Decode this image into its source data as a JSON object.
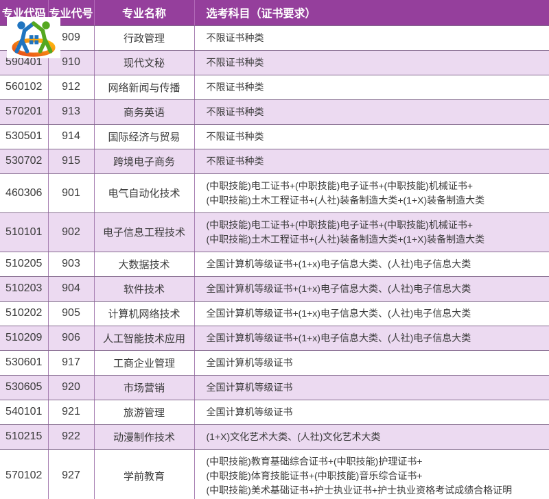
{
  "header": {
    "major_code": "专业代码",
    "major_number": "专业代号",
    "major_name": "专业名称",
    "exam_subjects": "选考科目（证书要求）"
  },
  "logo": {
    "description": "two-people-house-logo"
  },
  "colors": {
    "header_bg": "#953f9c",
    "row_alt": "#ecdaf1",
    "border_vertical": "#a77fb2",
    "border_horizontal": "#82688c",
    "text": "#3a3a3a",
    "logo_blue": "#1f74c0",
    "logo_green": "#55a820",
    "logo_orange": "#e8481a",
    "logo_yellow": "#ffc20e"
  },
  "rows": [
    {
      "code": "",
      "num": "909",
      "name": "行政管理",
      "req": "不限证书种类"
    },
    {
      "code": "590401",
      "num": "910",
      "name": "现代文秘",
      "req": "不限证书种类"
    },
    {
      "code": "560102",
      "num": "912",
      "name": "网络新闻与传播",
      "req": "不限证书种类"
    },
    {
      "code": "570201",
      "num": "913",
      "name": "商务英语",
      "req": "不限证书种类"
    },
    {
      "code": "530501",
      "num": "914",
      "name": "国际经济与贸易",
      "req": "不限证书种类"
    },
    {
      "code": "530702",
      "num": "915",
      "name": "跨境电子商务",
      "req": "不限证书种类"
    },
    {
      "code": "460306",
      "num": "901",
      "name": "电气自动化技术",
      "req": "(中职技能)电工证书+(中职技能)电子证书+(中职技能)机械证书+\n(中职技能)土木工程证书+(人社)装备制造大类+(1+X)装备制造大类"
    },
    {
      "code": "510101",
      "num": "902",
      "name": "电子信息工程技术",
      "req": "(中职技能)电工证书+(中职技能)电子证书+(中职技能)机械证书+\n(中职技能)土木工程证书+(人社)装备制造大类+(1+X)装备制造大类"
    },
    {
      "code": "510205",
      "num": "903",
      "name": "大数据技术",
      "req": "全国计算机等级证书+(1+x)电子信息大类、(人社)电子信息大类"
    },
    {
      "code": "510203",
      "num": "904",
      "name": "软件技术",
      "req": "全国计算机等级证书+(1+x)电子信息大类、(人社)电子信息大类"
    },
    {
      "code": "510202",
      "num": "905",
      "name": "计算机网络技术",
      "req": "全国计算机等级证书+(1+x)电子信息大类、(人社)电子信息大类"
    },
    {
      "code": "510209",
      "num": "906",
      "name": "人工智能技术应用",
      "req": "全国计算机等级证书+(1+x)电子信息大类、(人社)电子信息大类"
    },
    {
      "code": "530601",
      "num": "917",
      "name": "工商企业管理",
      "req": "全国计算机等级证书"
    },
    {
      "code": "530605",
      "num": "920",
      "name": "市场营销",
      "req": "全国计算机等级证书"
    },
    {
      "code": "540101",
      "num": "921",
      "name": "旅游管理",
      "req": "全国计算机等级证书"
    },
    {
      "code": "510215",
      "num": "922",
      "name": "动漫制作技术",
      "req": "(1+X)文化艺术大类、(人社)文化艺术大类"
    },
    {
      "code": "570102",
      "num": "927",
      "name": "学前教育",
      "req": "(中职技能)教育基础综合证书+(中职技能)护理证书+\n(中职技能)体育技能证书+(中职技能)音乐综合证书+\n(中职技能)美术基础证书+护士执业证书+护士执业资格考试成绩合格证明"
    }
  ]
}
